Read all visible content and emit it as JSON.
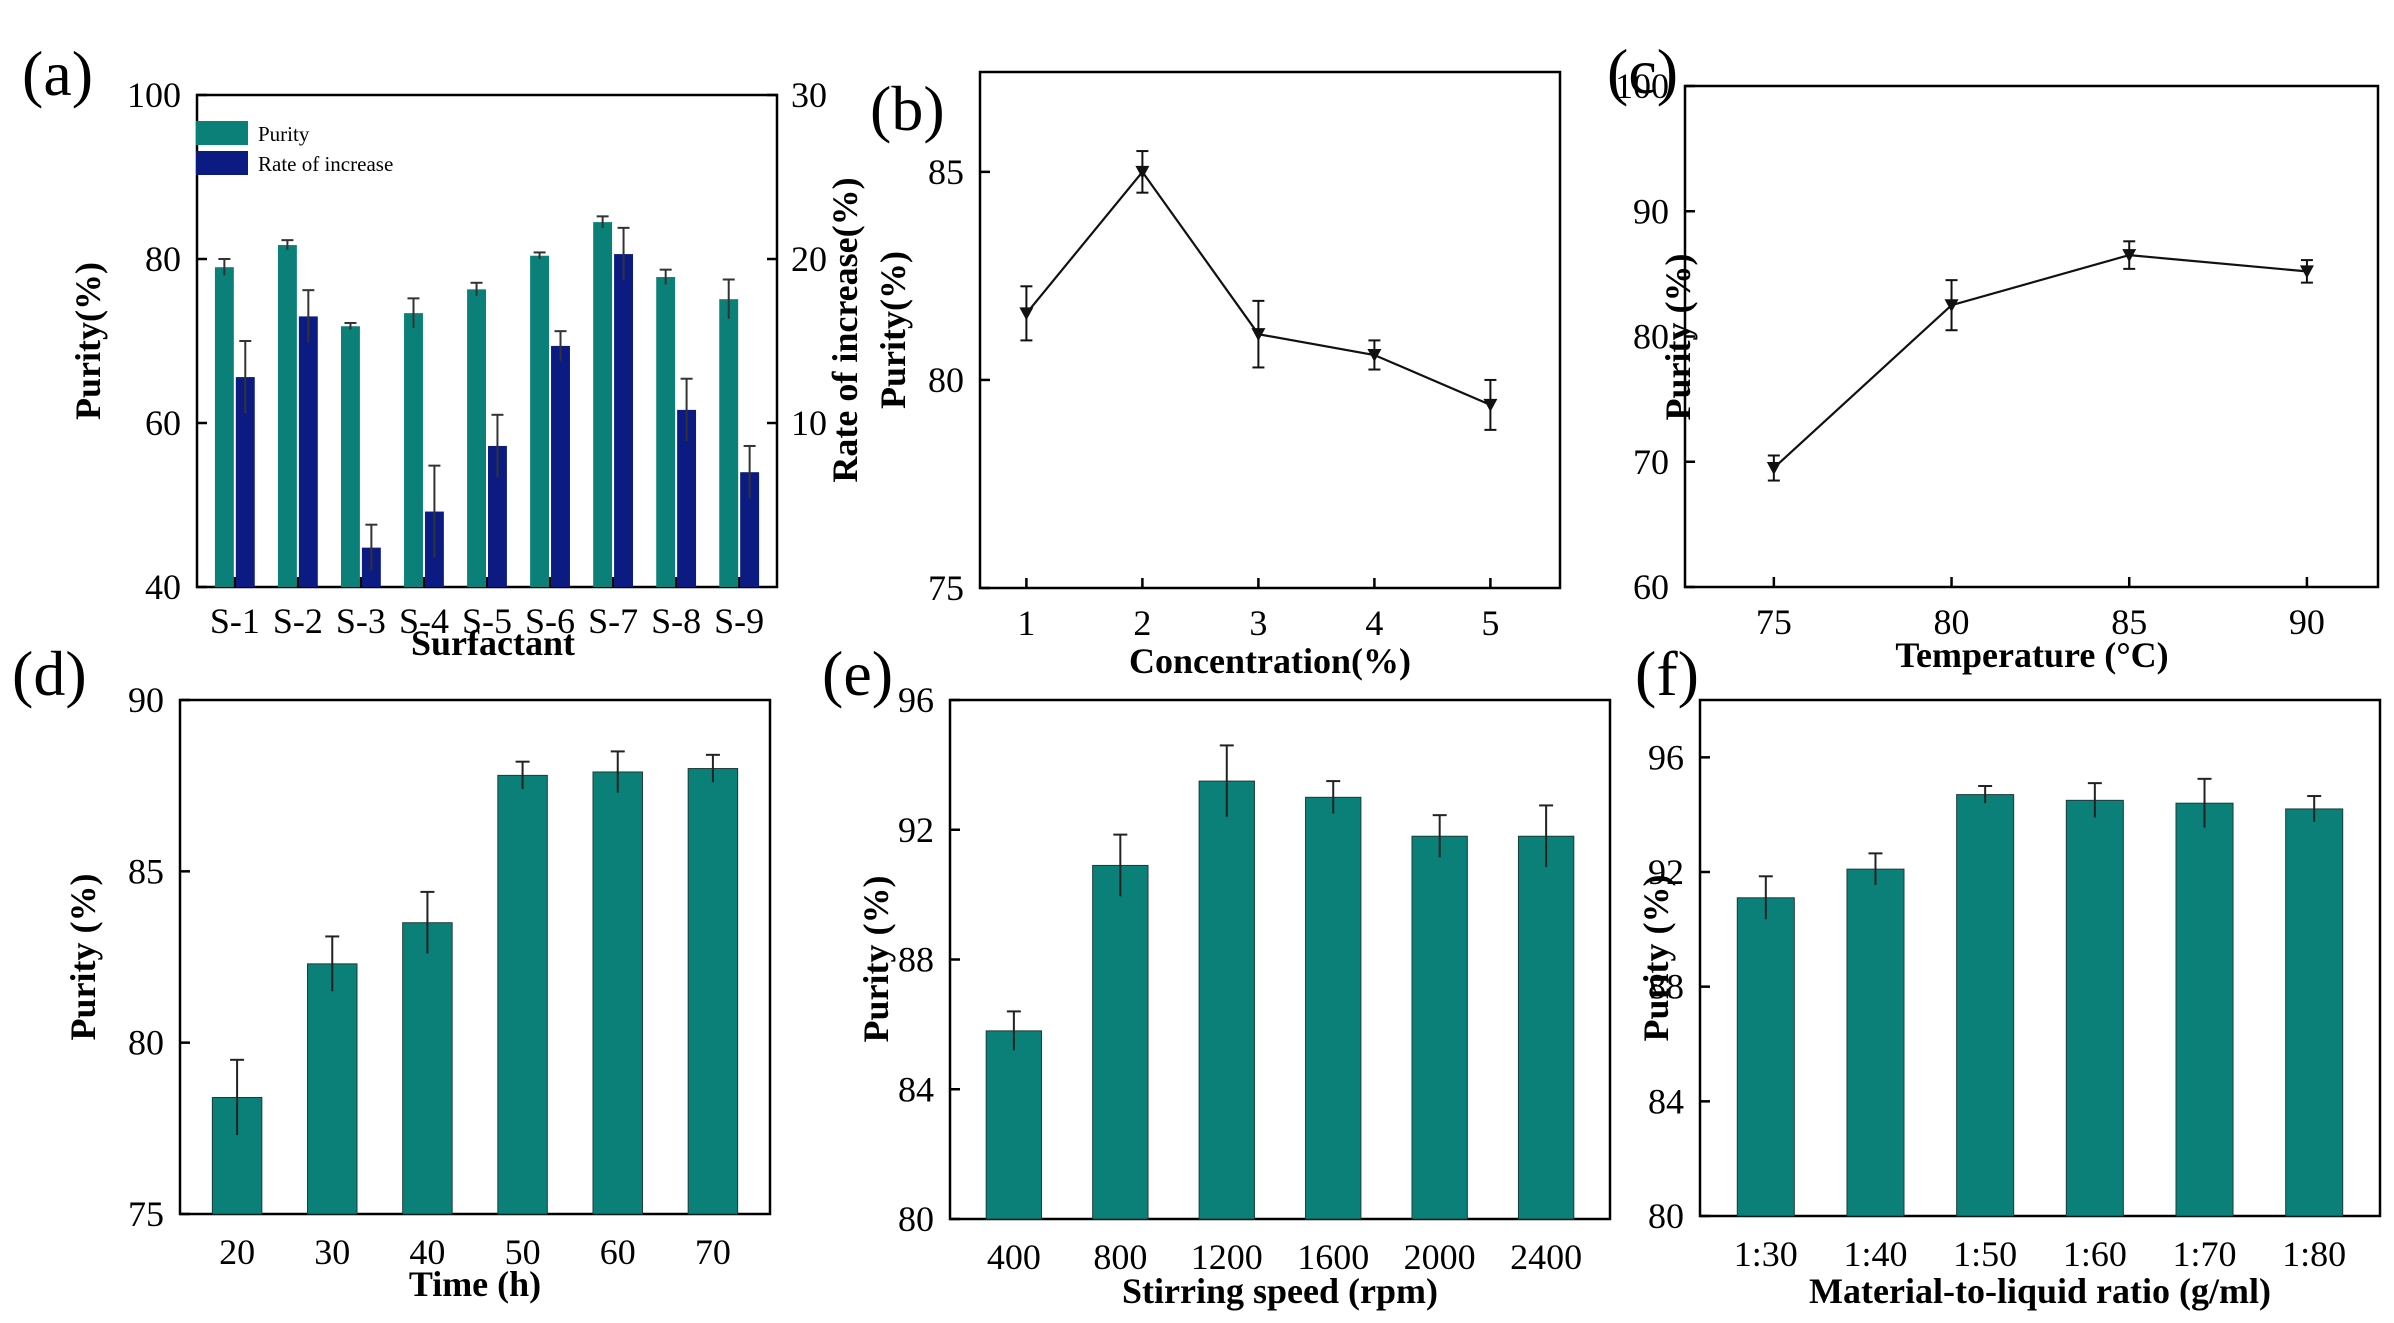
{
  "colors": {
    "teal": "#0a8078",
    "navy": "#0b1b82",
    "axis": "#000000"
  },
  "chart_data": [
    {
      "id": "a",
      "panel_label": "(a)",
      "type": "bar",
      "title": "",
      "xlabel": "Surfactant",
      "ylabel": "Purity(%)",
      "ylabel_right": "Rate of increase(%)",
      "ylim": [
        40,
        100
      ],
      "yticks": [
        40,
        60,
        80,
        100
      ],
      "ylim_right": [
        0,
        30
      ],
      "yticks_right": [
        10,
        20,
        30
      ],
      "categories": [
        "S-1",
        "S-2",
        "S-3",
        "S-4",
        "S-5",
        "S-6",
        "S-7",
        "S-8",
        "S-9"
      ],
      "series": [
        {
          "name": "Purity",
          "axis": "left",
          "color_key": "teal",
          "values": [
            79.0,
            81.7,
            71.8,
            73.4,
            76.3,
            80.4,
            84.5,
            77.8,
            75.1
          ],
          "errors": [
            1.0,
            0.6,
            0.4,
            1.8,
            0.8,
            0.4,
            0.7,
            0.9,
            2.4
          ]
        },
        {
          "name": "Rate of increase",
          "axis": "right",
          "color_key": "navy",
          "values": [
            12.8,
            16.5,
            2.4,
            4.6,
            8.6,
            14.7,
            20.3,
            10.8,
            7.0
          ],
          "errors": [
            2.2,
            1.6,
            1.4,
            2.8,
            1.9,
            0.9,
            1.6,
            1.9,
            1.6
          ]
        }
      ],
      "legend": [
        "Purity",
        "Rate of increase"
      ],
      "legend_position": "top-left"
    },
    {
      "id": "b",
      "panel_label": "(b)",
      "type": "line",
      "title": "",
      "xlabel": "Concentration(%)",
      "ylabel": "Purity(%)",
      "x": [
        1,
        2,
        3,
        4,
        5
      ],
      "xticks": [
        1,
        2,
        3,
        4,
        5
      ],
      "xlim": [
        0.6,
        5.6
      ],
      "ylim": [
        75,
        87.4
      ],
      "yticks": [
        75,
        80,
        85
      ],
      "values": [
        81.6,
        85.0,
        81.1,
        80.6,
        79.4
      ],
      "errors": [
        0.65,
        0.5,
        0.8,
        0.35,
        0.6
      ]
    },
    {
      "id": "c",
      "panel_label": "(c)",
      "type": "line",
      "title": "",
      "xlabel": "Temperature (°C)",
      "ylabel": "Purity (%)",
      "x": [
        75,
        80,
        85,
        90
      ],
      "xticks": [
        75,
        80,
        85,
        90
      ],
      "xlim": [
        72.5,
        92
      ],
      "ylim": [
        60,
        100
      ],
      "yticks": [
        60,
        70,
        80,
        90,
        100
      ],
      "values": [
        69.5,
        82.5,
        86.5,
        85.2
      ],
      "errors": [
        1.0,
        2.0,
        1.1,
        0.9
      ]
    },
    {
      "id": "d",
      "panel_label": "(d)",
      "type": "bar",
      "title": "",
      "xlabel": "Time (h)",
      "ylabel": "Purity (%)",
      "categories": [
        "20",
        "30",
        "40",
        "50",
        "60",
        "70"
      ],
      "ylim": [
        75,
        90
      ],
      "yticks": [
        75,
        80,
        85,
        90
      ],
      "values": [
        78.4,
        82.3,
        83.5,
        87.8,
        87.9,
        88.0
      ],
      "errors": [
        1.1,
        0.8,
        0.9,
        0.4,
        0.6,
        0.4
      ]
    },
    {
      "id": "e",
      "panel_label": "(e)",
      "type": "bar",
      "title": "",
      "xlabel": "Stirring speed (rpm)",
      "ylabel": "Purity (%)",
      "categories": [
        "400",
        "800",
        "1200",
        "1600",
        "2000",
        "2400"
      ],
      "ylim": [
        80,
        96
      ],
      "yticks": [
        80,
        84,
        88,
        92,
        96
      ],
      "values": [
        85.8,
        90.9,
        93.5,
        93.0,
        91.8,
        91.8
      ],
      "errors": [
        0.6,
        0.95,
        1.1,
        0.5,
        0.65,
        0.95
      ]
    },
    {
      "id": "f",
      "panel_label": "(f)",
      "type": "bar",
      "title": "",
      "xlabel": "Material-to-liquid ratio (g/ml)",
      "ylabel": "Purity (%)",
      "categories": [
        "1:30",
        "1:40",
        "1:50",
        "1:60",
        "1:70",
        "1:80"
      ],
      "ylim": [
        80,
        98
      ],
      "yticks": [
        80,
        84,
        88,
        92,
        96
      ],
      "values": [
        91.1,
        92.1,
        94.7,
        94.5,
        94.4,
        94.2
      ],
      "errors": [
        0.75,
        0.55,
        0.3,
        0.6,
        0.85,
        0.45
      ]
    }
  ]
}
